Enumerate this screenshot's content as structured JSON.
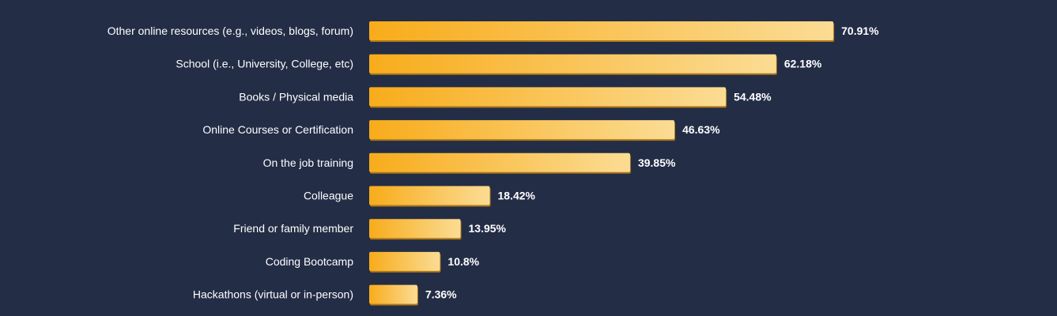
{
  "colors": {
    "background": "#232d46",
    "bar_start": "#f8ac1b",
    "bar_end": "#fbdc94",
    "bar_shadow": "#b07a1a",
    "text": "#ffffff"
  },
  "chart_data": {
    "type": "bar",
    "orientation": "horizontal",
    "unit": "%",
    "categories": [
      "Other online resources (e.g., videos, blogs, forum)",
      "School (i.e., University, College, etc)",
      "Books / Physical media",
      "Online Courses or Certification",
      "On the job training",
      "Colleague",
      "Friend or family member",
      "Coding Bootcamp",
      "Hackathons (virtual or in-person)"
    ],
    "values": [
      70.91,
      62.18,
      54.48,
      46.63,
      39.85,
      18.42,
      13.95,
      10.8,
      7.36
    ],
    "value_labels": [
      "70.91%",
      "62.18%",
      "54.48%",
      "46.63%",
      "39.85%",
      "18.42%",
      "13.95%",
      "10.8%",
      "7.36%"
    ],
    "title": "",
    "xlabel": "",
    "ylabel": "",
    "grid": false,
    "legend": "none"
  }
}
